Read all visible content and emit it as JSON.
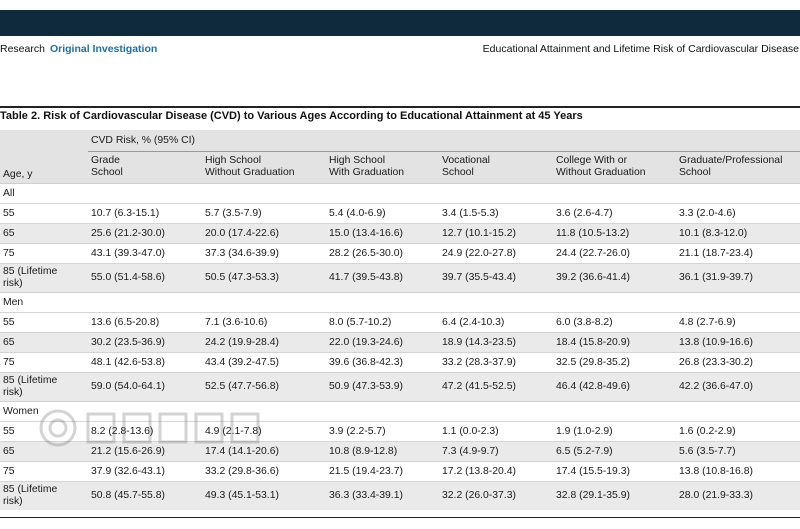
{
  "header": {
    "section_label": "Research",
    "article_type": "Original Investigation",
    "running_title": "Educational Attainment and Lifetime Risk of Cardiovascular Disease"
  },
  "table": {
    "title": "Table 2. Risk of Cardiovascular Disease (CVD) to Various Ages According to Educational Attainment at 45 Years",
    "group_header": "CVD Risk, % (95% CI)",
    "row_header": "Age, y",
    "columns": [
      [
        "Grade",
        "School"
      ],
      [
        "High School",
        "Without Graduation"
      ],
      [
        "High School",
        "With Graduation"
      ],
      [
        "Vocational",
        "School"
      ],
      [
        "College With or",
        "Without Graduation"
      ],
      [
        "Graduate/Professional",
        "School"
      ]
    ],
    "sections": [
      {
        "name": "All",
        "rows": [
          {
            "age": [
              "55"
            ],
            "values": [
              "10.7 (6.3-15.1)",
              "5.7 (3.5-7.9)",
              "5.4 (4.0-6.9)",
              "3.4 (1.5-5.3)",
              "3.6 (2.6-4.7)",
              "3.3 (2.0-4.6)"
            ]
          },
          {
            "age": [
              "65"
            ],
            "values": [
              "25.6 (21.2-30.0)",
              "20.0 (17.4-22.6)",
              "15.0 (13.4-16.6)",
              "12.7 (10.1-15.2)",
              "11.8 (10.5-13.2)",
              "10.1 (8.3-12.0)"
            ]
          },
          {
            "age": [
              "75"
            ],
            "values": [
              "43.1 (39.3-47.0)",
              "37.3 (34.6-39.9)",
              "28.2 (26.5-30.0)",
              "24.9 (22.0-27.8)",
              "24.4 (22.7-26.0)",
              "21.1 (18.7-23.4)"
            ]
          },
          {
            "age": [
              "85 (Lifetime",
              "risk)"
            ],
            "values": [
              "55.0 (51.4-58.6)",
              "50.5 (47.3-53.3)",
              "41.7 (39.5-43.8)",
              "39.7 (35.5-43.4)",
              "39.2 (36.6-41.4)",
              "36.1 (31.9-39.7)"
            ]
          }
        ]
      },
      {
        "name": "Men",
        "rows": [
          {
            "age": [
              "55"
            ],
            "values": [
              "13.6 (6.5-20.8)",
              "7.1 (3.6-10.6)",
              "8.0 (5.7-10.2)",
              "6.4 (2.4-10.3)",
              "6.0 (3.8-8.2)",
              "4.8 (2.7-6.9)"
            ]
          },
          {
            "age": [
              "65"
            ],
            "values": [
              "30.2 (23.5-36.9)",
              "24.2 (19.9-28.4)",
              "22.0 (19.3-24.6)",
              "18.9 (14.3-23.5)",
              "18.4 (15.8-20.9)",
              "13.8 (10.9-16.6)"
            ]
          },
          {
            "age": [
              "75"
            ],
            "values": [
              "48.1 (42.6-53.8)",
              "43.4 (39.2-47.5)",
              "39.6 (36.8-42.3)",
              "33.2 (28.3-37.9)",
              "32.5 (29.8-35.2)",
              "26.8 (23.3-30.2)"
            ]
          },
          {
            "age": [
              "85 (Lifetime",
              "risk)"
            ],
            "values": [
              "59.0 (54.0-64.1)",
              "52.5 (47.7-56.8)",
              "50.9 (47.3-53.9)",
              "47.2 (41.5-52.5)",
              "46.4 (42.8-49.6)",
              "42.2 (36.6-47.0)"
            ]
          }
        ]
      },
      {
        "name": "Women",
        "rows": [
          {
            "age": [
              "55"
            ],
            "values": [
              "8.2 (2.8-13.6)",
              "4.9 (2.1-7.8)",
              "3.9 (2.2-5.7)",
              "1.1 (0.0-2.3)",
              "1.9 (1.0-2.9)",
              "1.6 (0.2-2.9)"
            ]
          },
          {
            "age": [
              "65"
            ],
            "values": [
              "21.2 (15.6-26.9)",
              "17.4 (14.1-20.6)",
              "10.8 (8.9-12.8)",
              "7.3 (4.9-9.7)",
              "6.5 (5.2-7.9)",
              "5.6 (3.5-7.7)"
            ]
          },
          {
            "age": [
              "75"
            ],
            "values": [
              "37.9 (32.6-43.1)",
              "33.2 (29.8-36.6)",
              "21.5 (19.4-23.7)",
              "17.2 (13.8-20.4)",
              "17.4 (15.5-19.3)",
              "13.8 (10.8-16.8)"
            ]
          },
          {
            "age": [
              "85 (Lifetime",
              "risk)"
            ],
            "values": [
              "50.8 (45.7-55.8)",
              "49.3 (45.1-53.1)",
              "36.3 (33.4-39.1)",
              "32.2 (26.0-37.3)",
              "32.8 (29.1-35.9)",
              "28.0 (21.9-33.3)"
            ]
          }
        ]
      }
    ]
  },
  "colors": {
    "top_bar": "#0e2a3c",
    "accent_link": "#1b6fa8",
    "header_shade": "#e3e3e3",
    "row_shade": "#eaeaea"
  }
}
